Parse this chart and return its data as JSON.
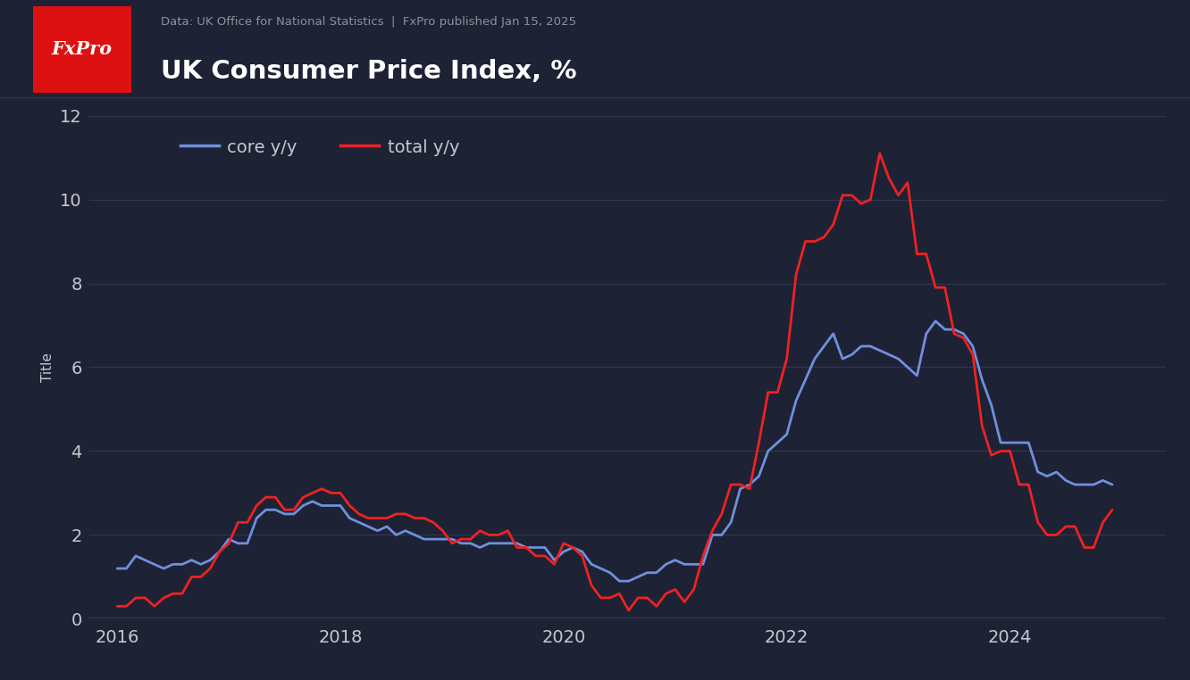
{
  "title": "UK Consumer Price Index, %",
  "subtitle": "Data: UK Office for National Statistics  |  FxPro published Jan 15, 2025",
  "ylabel": "Title",
  "bg_color": "#1e2235",
  "header_bg": "#252a3d",
  "text_color": "#c8c8cc",
  "title_color": "#ffffff",
  "grid_color": "#2e3555",
  "core_color": "#7090dd",
  "total_color": "#ee2222",
  "fxpro_bg": "#dd1111",
  "fxpro_text": "#ffffff",
  "axis_line_color": "#9999aa",
  "ylim": [
    0,
    12
  ],
  "yticks": [
    0,
    2,
    4,
    6,
    8,
    10,
    12
  ],
  "xlim_start": 2015.75,
  "xlim_end": 2025.4,
  "dates_core": [
    2016.0,
    2016.083,
    2016.167,
    2016.25,
    2016.333,
    2016.417,
    2016.5,
    2016.583,
    2016.667,
    2016.75,
    2016.833,
    2016.917,
    2017.0,
    2017.083,
    2017.167,
    2017.25,
    2017.333,
    2017.417,
    2017.5,
    2017.583,
    2017.667,
    2017.75,
    2017.833,
    2017.917,
    2018.0,
    2018.083,
    2018.167,
    2018.25,
    2018.333,
    2018.417,
    2018.5,
    2018.583,
    2018.667,
    2018.75,
    2018.833,
    2018.917,
    2019.0,
    2019.083,
    2019.167,
    2019.25,
    2019.333,
    2019.417,
    2019.5,
    2019.583,
    2019.667,
    2019.75,
    2019.833,
    2019.917,
    2020.0,
    2020.083,
    2020.167,
    2020.25,
    2020.333,
    2020.417,
    2020.5,
    2020.583,
    2020.667,
    2020.75,
    2020.833,
    2020.917,
    2021.0,
    2021.083,
    2021.167,
    2021.25,
    2021.333,
    2021.417,
    2021.5,
    2021.583,
    2021.667,
    2021.75,
    2021.833,
    2021.917,
    2022.0,
    2022.083,
    2022.167,
    2022.25,
    2022.333,
    2022.417,
    2022.5,
    2022.583,
    2022.667,
    2022.75,
    2022.833,
    2022.917,
    2023.0,
    2023.083,
    2023.167,
    2023.25,
    2023.333,
    2023.417,
    2023.5,
    2023.583,
    2023.667,
    2023.75,
    2023.833,
    2023.917,
    2024.0,
    2024.083,
    2024.167,
    2024.25,
    2024.333,
    2024.417,
    2024.5,
    2024.583,
    2024.667,
    2024.75,
    2024.833,
    2024.917
  ],
  "values_core": [
    1.2,
    1.2,
    1.5,
    1.4,
    1.3,
    1.2,
    1.3,
    1.3,
    1.4,
    1.3,
    1.4,
    1.6,
    1.9,
    1.8,
    1.8,
    2.4,
    2.6,
    2.6,
    2.5,
    2.5,
    2.7,
    2.8,
    2.7,
    2.7,
    2.7,
    2.4,
    2.3,
    2.2,
    2.1,
    2.2,
    2.0,
    2.1,
    2.0,
    1.9,
    1.9,
    1.9,
    1.9,
    1.8,
    1.8,
    1.7,
    1.8,
    1.8,
    1.8,
    1.8,
    1.7,
    1.7,
    1.7,
    1.4,
    1.6,
    1.7,
    1.6,
    1.3,
    1.2,
    1.1,
    0.9,
    0.9,
    1.0,
    1.1,
    1.1,
    1.3,
    1.4,
    1.3,
    1.3,
    1.3,
    2.0,
    2.0,
    2.3,
    3.1,
    3.2,
    3.4,
    4.0,
    4.2,
    4.4,
    5.2,
    5.7,
    6.2,
    6.5,
    6.8,
    6.2,
    6.3,
    6.5,
    6.5,
    6.4,
    6.3,
    6.2,
    6.0,
    5.8,
    6.8,
    7.1,
    6.9,
    6.9,
    6.8,
    6.5,
    5.7,
    5.1,
    4.2,
    4.2,
    4.2,
    4.2,
    3.5,
    3.4,
    3.5,
    3.3,
    3.2,
    3.2,
    3.2,
    3.3,
    3.2
  ],
  "dates_total": [
    2016.0,
    2016.083,
    2016.167,
    2016.25,
    2016.333,
    2016.417,
    2016.5,
    2016.583,
    2016.667,
    2016.75,
    2016.833,
    2016.917,
    2017.0,
    2017.083,
    2017.167,
    2017.25,
    2017.333,
    2017.417,
    2017.5,
    2017.583,
    2017.667,
    2017.75,
    2017.833,
    2017.917,
    2018.0,
    2018.083,
    2018.167,
    2018.25,
    2018.333,
    2018.417,
    2018.5,
    2018.583,
    2018.667,
    2018.75,
    2018.833,
    2018.917,
    2019.0,
    2019.083,
    2019.167,
    2019.25,
    2019.333,
    2019.417,
    2019.5,
    2019.583,
    2019.667,
    2019.75,
    2019.833,
    2019.917,
    2020.0,
    2020.083,
    2020.167,
    2020.25,
    2020.333,
    2020.417,
    2020.5,
    2020.583,
    2020.667,
    2020.75,
    2020.833,
    2020.917,
    2021.0,
    2021.083,
    2021.167,
    2021.25,
    2021.333,
    2021.417,
    2021.5,
    2021.583,
    2021.667,
    2021.75,
    2021.833,
    2021.917,
    2022.0,
    2022.083,
    2022.167,
    2022.25,
    2022.333,
    2022.417,
    2022.5,
    2022.583,
    2022.667,
    2022.75,
    2022.833,
    2022.917,
    2023.0,
    2023.083,
    2023.167,
    2023.25,
    2023.333,
    2023.417,
    2023.5,
    2023.583,
    2023.667,
    2023.75,
    2023.833,
    2023.917,
    2024.0,
    2024.083,
    2024.167,
    2024.25,
    2024.333,
    2024.417,
    2024.5,
    2024.583,
    2024.667,
    2024.75,
    2024.833,
    2024.917
  ],
  "values_total": [
    0.3,
    0.3,
    0.5,
    0.5,
    0.3,
    0.5,
    0.6,
    0.6,
    1.0,
    1.0,
    1.2,
    1.6,
    1.8,
    2.3,
    2.3,
    2.7,
    2.9,
    2.9,
    2.6,
    2.6,
    2.9,
    3.0,
    3.1,
    3.0,
    3.0,
    2.7,
    2.5,
    2.4,
    2.4,
    2.4,
    2.5,
    2.5,
    2.4,
    2.4,
    2.3,
    2.1,
    1.8,
    1.9,
    1.9,
    2.1,
    2.0,
    2.0,
    2.1,
    1.7,
    1.7,
    1.5,
    1.5,
    1.3,
    1.8,
    1.7,
    1.5,
    0.8,
    0.5,
    0.5,
    0.6,
    0.2,
    0.5,
    0.5,
    0.3,
    0.6,
    0.7,
    0.4,
    0.7,
    1.5,
    2.1,
    2.5,
    3.2,
    3.2,
    3.1,
    4.2,
    5.4,
    5.4,
    6.2,
    8.2,
    9.0,
    9.0,
    9.1,
    9.4,
    10.1,
    10.1,
    9.9,
    10.0,
    11.1,
    10.5,
    10.1,
    10.4,
    8.7,
    8.7,
    7.9,
    7.9,
    6.8,
    6.7,
    6.3,
    4.6,
    3.9,
    4.0,
    4.0,
    3.2,
    3.2,
    2.3,
    2.0,
    2.0,
    2.2,
    2.2,
    1.7,
    1.7,
    2.3,
    2.6
  ],
  "xticks": [
    2016,
    2018,
    2020,
    2022,
    2024
  ],
  "xtick_labels": [
    "2016",
    "2018",
    "2020",
    "2022",
    "2024"
  ]
}
